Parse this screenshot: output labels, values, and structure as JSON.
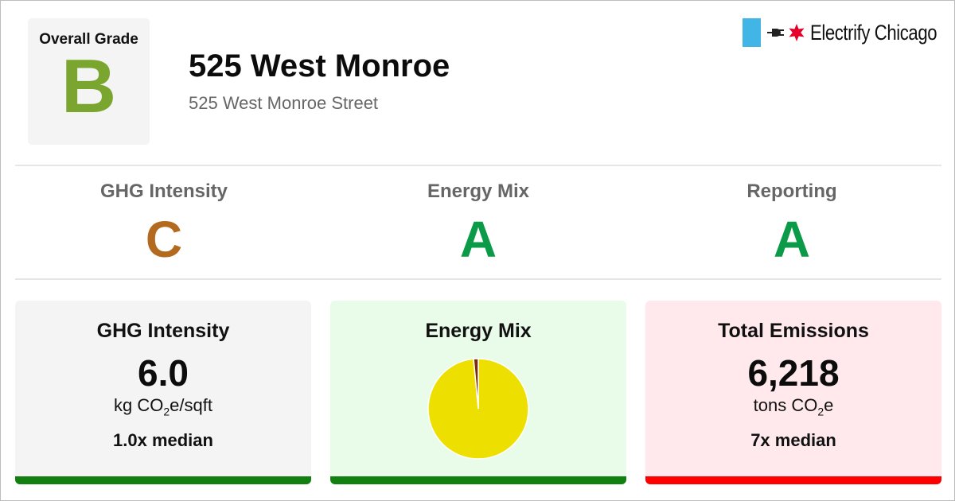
{
  "overall": {
    "label": "Overall Grade",
    "grade": "B",
    "color": "#7aa52f"
  },
  "building": {
    "name": "525 West Monroe",
    "address": "525 West Monroe Street"
  },
  "brand": {
    "name": "Electrify Chicago",
    "flag_color": "#41b6e6",
    "star_color": "#e4002b"
  },
  "subgrades": [
    {
      "label": "GHG Intensity",
      "grade": "C",
      "color": "#b46a1e"
    },
    {
      "label": "Energy Mix",
      "grade": "A",
      "color": "#0a9a48"
    },
    {
      "label": "Reporting",
      "grade": "A",
      "color": "#0a9a48"
    }
  ],
  "cards": {
    "ghg": {
      "title": "GHG Intensity",
      "value": "6.0",
      "unit_prefix": "kg CO",
      "unit_sub": "2",
      "unit_suffix": "e/sqft",
      "median": "1.0x median",
      "bg": "#f4f4f4",
      "bar_color": "#118011"
    },
    "mix": {
      "title": "Energy Mix",
      "bg": "#e9fce9",
      "bar_color": "#118011"
    },
    "emissions": {
      "title": "Total Emissions",
      "value": "6,218",
      "unit_prefix": "tons CO",
      "unit_sub": "2",
      "unit_suffix": "e",
      "median": "7x median",
      "bg": "#ffe9ec",
      "bar_color": "#ff0000"
    }
  },
  "chart_data": {
    "type": "pie",
    "slices": [
      {
        "value": 98.5,
        "color": "#ede000"
      },
      {
        "value": 1.5,
        "color": "#7a2a0e"
      }
    ]
  }
}
